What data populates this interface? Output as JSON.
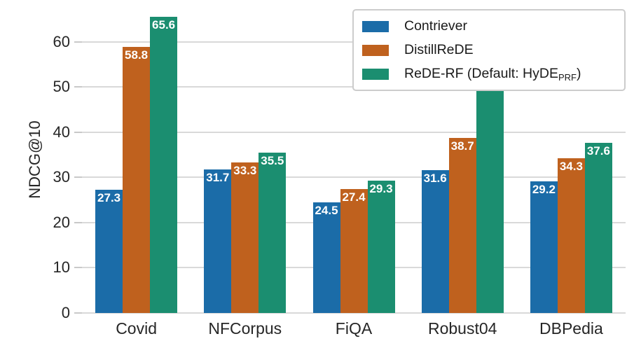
{
  "chart_data": {
    "type": "bar",
    "title": "",
    "ylabel": "NDCG@10",
    "xlabel": "",
    "categories": [
      "Covid",
      "NFCorpus",
      "FiQA",
      "Robust04",
      "DBPedia"
    ],
    "series": [
      {
        "name": "Contriever",
        "color": "#1b6ca8",
        "values": [
          27.3,
          31.7,
          24.5,
          31.6,
          29.2
        ],
        "legend_main": "Contriever",
        "legend_sub": "",
        "legend_suffix": ""
      },
      {
        "name": "DistillReDE",
        "color": "#bf611e",
        "values": [
          58.8,
          33.3,
          27.4,
          38.7,
          34.3
        ],
        "legend_main": "DistillReDE",
        "legend_sub": "",
        "legend_suffix": ""
      },
      {
        "name": "ReDE-RF (Default: HyDE_PRF)",
        "color": "#1b8e70",
        "values": [
          65.6,
          35.5,
          29.3,
          51.7,
          37.6
        ],
        "legend_main": "ReDE-RF (Default: HyDE",
        "legend_sub": "PRF",
        "legend_suffix": ")"
      }
    ],
    "yticks": [
      0,
      10,
      20,
      30,
      40,
      50,
      60
    ],
    "ylim": [
      0,
      68
    ],
    "grid": true,
    "legend_position": "upper right",
    "bar_label_color": "#ffffff",
    "gridline_color": "#d9d9d9",
    "tick_label_color": "#262626"
  }
}
